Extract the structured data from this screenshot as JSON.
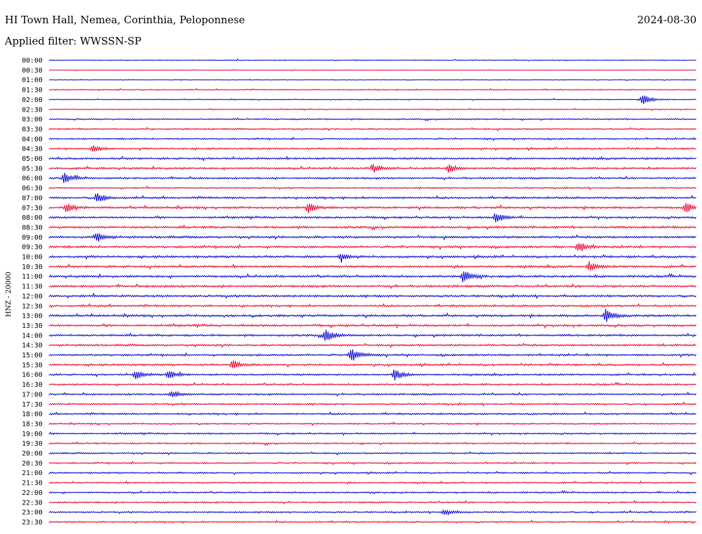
{
  "header": {
    "station": "HI Town Hall, Nemea, Corinthia, Peloponnese",
    "date": "2024-08-30",
    "filter": "Applied filter: WWSSN-SP"
  },
  "chart_data": {
    "type": "line",
    "title": "HI Town Hall, Nemea, Corinthia, Peloponnese",
    "subtitle": "Applied filter: WWSSN-SP",
    "ylabel": "HNZ - 20000",
    "xlabel": "",
    "colors": [
      "#0000cc",
      "#e8002d"
    ],
    "rows": [
      "00:00",
      "00:30",
      "01:00",
      "01:30",
      "02:00",
      "02:30",
      "03:00",
      "03:30",
      "04:00",
      "04:30",
      "05:00",
      "05:30",
      "06:00",
      "06:30",
      "07:00",
      "07:30",
      "08:00",
      "08:30",
      "09:00",
      "09:30",
      "10:00",
      "10:30",
      "11:00",
      "11:30",
      "12:00",
      "12:30",
      "13:00",
      "13:30",
      "14:00",
      "14:30",
      "15:00",
      "15:30",
      "16:00",
      "16:30",
      "17:00",
      "17:30",
      "18:00",
      "18:30",
      "19:00",
      "19:30",
      "20:00",
      "20:30",
      "21:00",
      "21:30",
      "22:00",
      "22:30",
      "23:00",
      "23:30"
    ],
    "noise_level": [
      0.4,
      0.3,
      0.3,
      0.5,
      0.4,
      0.5,
      0.6,
      0.7,
      0.7,
      0.8,
      0.9,
      0.9,
      0.8,
      0.7,
      0.9,
      1.0,
      0.9,
      1.0,
      1.0,
      1.0,
      1.0,
      1.0,
      1.0,
      1.0,
      1.0,
      0.9,
      1.0,
      1.0,
      0.9,
      0.9,
      0.9,
      0.9,
      0.8,
      0.8,
      0.8,
      0.8,
      0.8,
      0.7,
      0.7,
      0.7,
      0.7,
      0.7,
      0.7,
      0.7,
      0.7,
      0.7,
      0.7,
      0.7
    ],
    "events": [
      {
        "row": "02:00",
        "minute": 27.5,
        "amplitude": 10
      },
      {
        "row": "04:30",
        "minute": 2.0,
        "amplitude": 5
      },
      {
        "row": "05:30",
        "minute": 15.0,
        "amplitude": 6
      },
      {
        "row": "05:30",
        "minute": 18.5,
        "amplitude": 6
      },
      {
        "row": "06:00",
        "minute": 0.7,
        "amplitude": 8
      },
      {
        "row": "07:00",
        "minute": 2.2,
        "amplitude": 8
      },
      {
        "row": "07:30",
        "minute": 0.8,
        "amplitude": 7
      },
      {
        "row": "07:30",
        "minute": 12.0,
        "amplitude": 7
      },
      {
        "row": "07:30",
        "minute": 29.5,
        "amplitude": 8
      },
      {
        "row": "08:00",
        "minute": 20.7,
        "amplitude": 8
      },
      {
        "row": "09:00",
        "minute": 2.2,
        "amplitude": 7
      },
      {
        "row": "09:30",
        "minute": 24.5,
        "amplitude": 9
      },
      {
        "row": "10:00",
        "minute": 13.5,
        "amplitude": 7
      },
      {
        "row": "10:30",
        "minute": 25.0,
        "amplitude": 7
      },
      {
        "row": "11:00",
        "minute": 19.2,
        "amplitude": 10
      },
      {
        "row": "13:00",
        "minute": 25.8,
        "amplitude": 10
      },
      {
        "row": "14:00",
        "minute": 12.8,
        "amplitude": 10
      },
      {
        "row": "15:00",
        "minute": 14.0,
        "amplitude": 12
      },
      {
        "row": "15:30",
        "minute": 8.5,
        "amplitude": 6
      },
      {
        "row": "16:00",
        "minute": 4.0,
        "amplitude": 7
      },
      {
        "row": "16:00",
        "minute": 5.5,
        "amplitude": 7
      },
      {
        "row": "16:00",
        "minute": 16.0,
        "amplitude": 9
      },
      {
        "row": "17:00",
        "minute": 5.7,
        "amplitude": 6
      },
      {
        "row": "23:00",
        "minute": 18.3,
        "amplitude": 5
      }
    ]
  }
}
